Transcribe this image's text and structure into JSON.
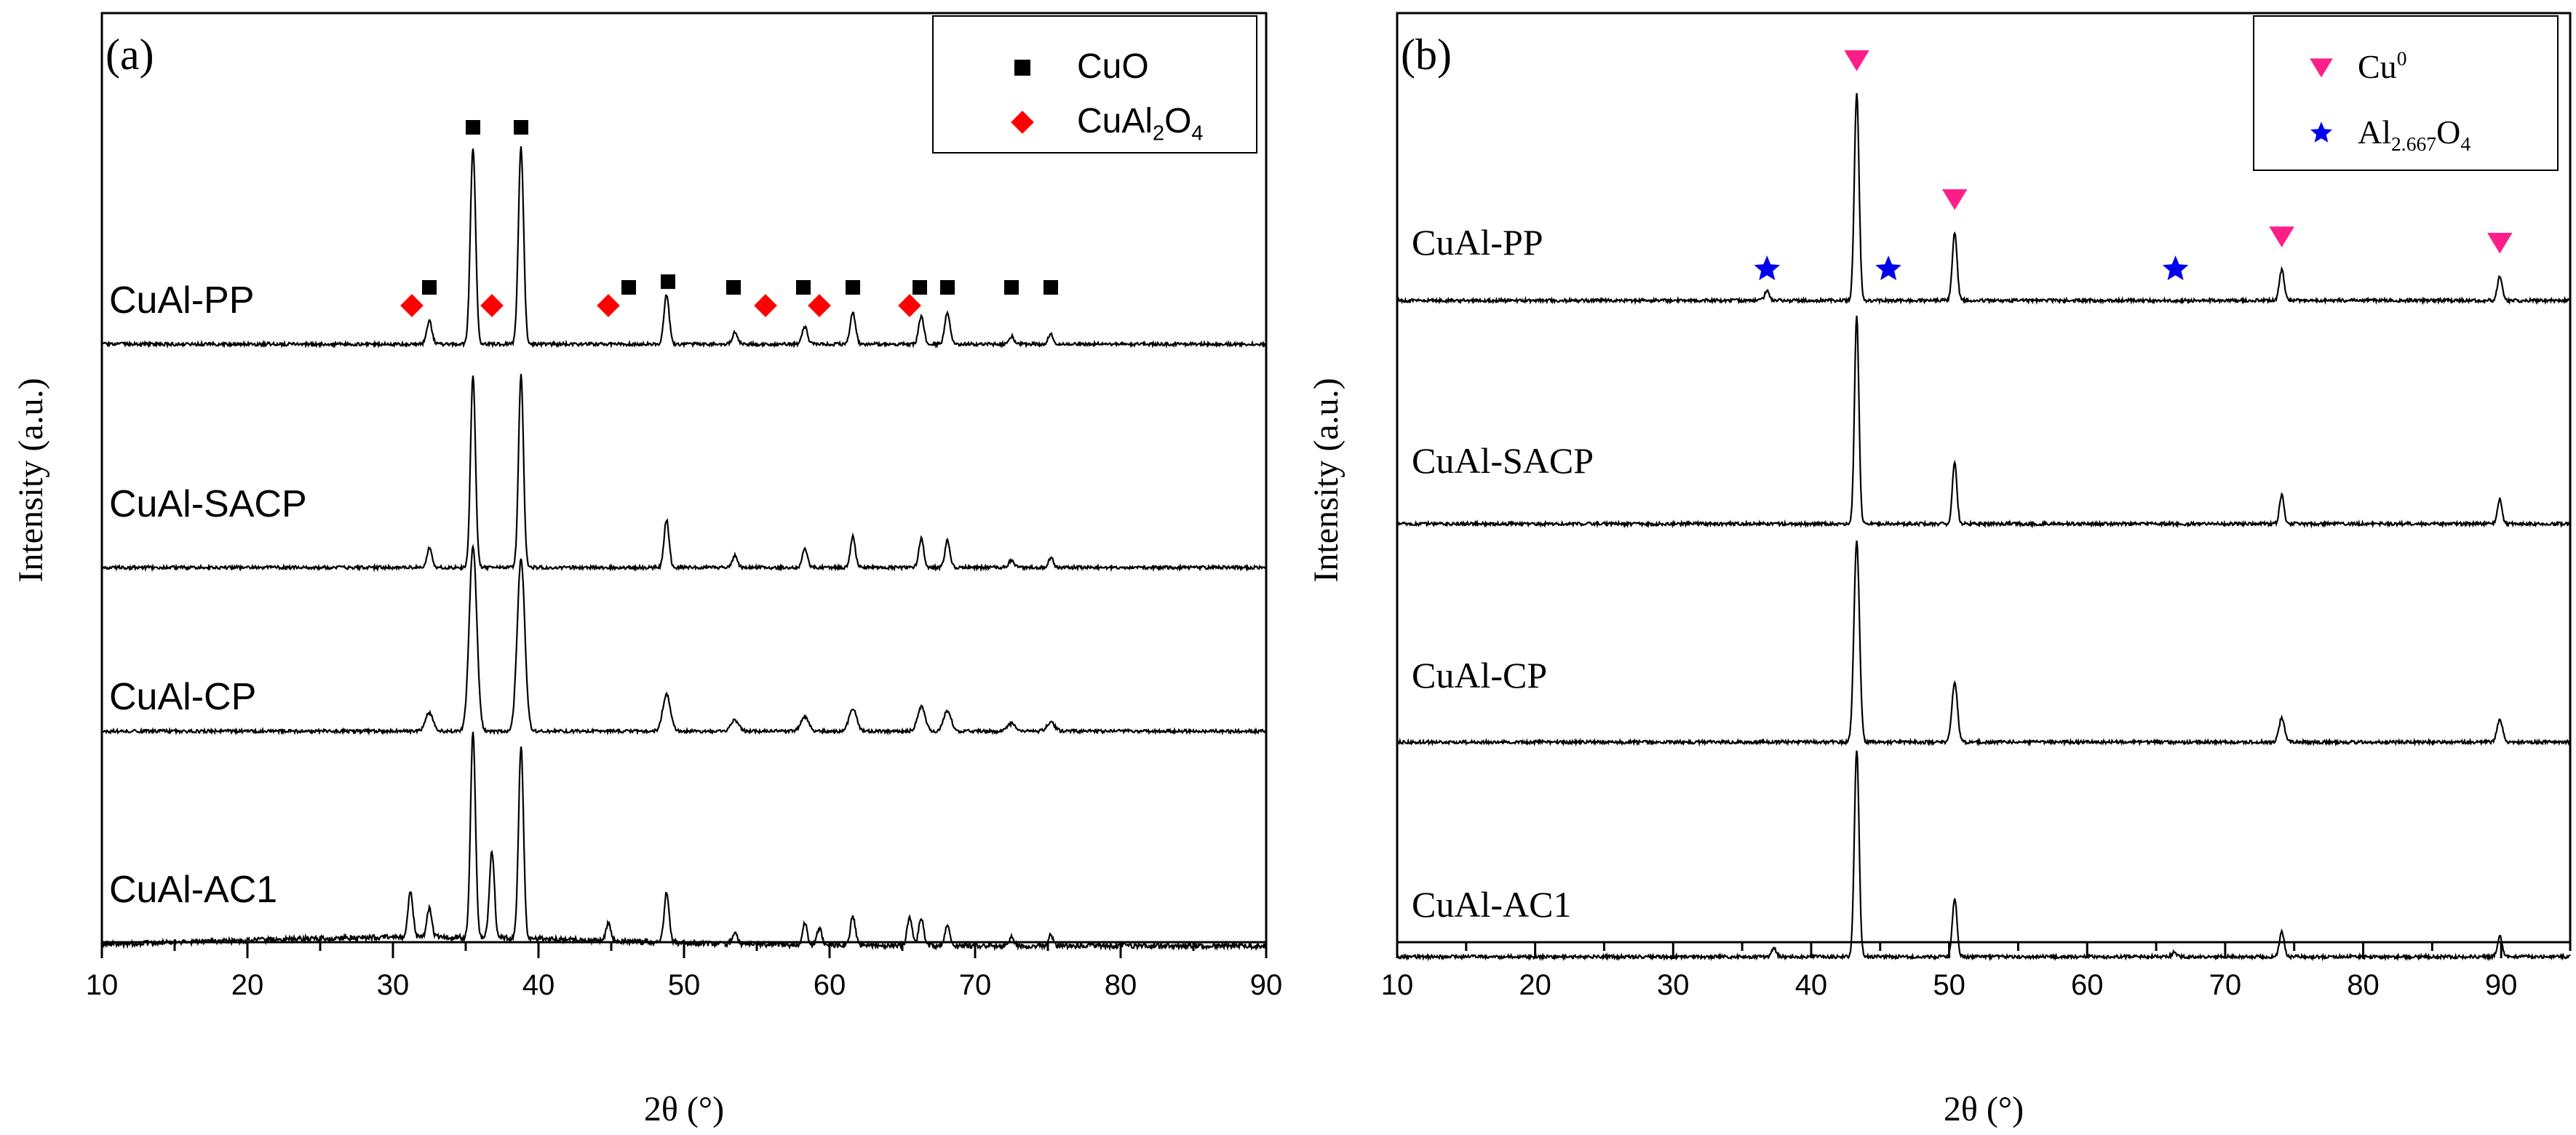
{
  "chart_data": [
    {
      "panel": "(a)",
      "type": "line",
      "xlabel": "2θ (°)",
      "ylabel": "Intensity (a.u.)",
      "xlim": [
        10,
        90
      ],
      "xticks": [
        "10",
        "20",
        "30",
        "40",
        "50",
        "60",
        "70",
        "80",
        "90"
      ],
      "legend": {
        "position": "top-right",
        "entries": [
          {
            "label": "CuO",
            "marker": "square",
            "color": "#000000"
          },
          {
            "label": "CuAl",
            "sub": "2",
            "label2": "O",
            "sub2": "4",
            "marker": "diamond",
            "color": "#ff0000"
          }
        ]
      },
      "series": [
        {
          "name": "CuAl-PP",
          "peaks": [
            [
              32.5,
              0.12
            ],
            [
              35.5,
              1.0
            ],
            [
              38.8,
              1.0
            ],
            [
              48.8,
              0.25
            ],
            [
              53.5,
              0.06
            ],
            [
              58.3,
              0.09
            ],
            [
              61.6,
              0.16
            ],
            [
              66.3,
              0.14
            ],
            [
              68.1,
              0.16
            ],
            [
              72.5,
              0.04
            ],
            [
              75.2,
              0.05
            ]
          ]
        },
        {
          "name": "CuAl-SACP",
          "peaks": [
            [
              32.5,
              0.1
            ],
            [
              35.5,
              1.0
            ],
            [
              38.8,
              1.0
            ],
            [
              48.8,
              0.25
            ],
            [
              53.5,
              0.06
            ],
            [
              58.3,
              0.1
            ],
            [
              61.6,
              0.16
            ],
            [
              66.3,
              0.15
            ],
            [
              68.1,
              0.14
            ],
            [
              72.5,
              0.04
            ],
            [
              75.2,
              0.05
            ]
          ]
        },
        {
          "name": "CuAl-CP",
          "peaks": [
            [
              32.5,
              0.1
            ],
            [
              35.5,
              1.0
            ],
            [
              38.8,
              0.93
            ],
            [
              48.8,
              0.2
            ],
            [
              53.5,
              0.06
            ],
            [
              58.3,
              0.08
            ],
            [
              61.6,
              0.12
            ],
            [
              66.3,
              0.13
            ],
            [
              68.1,
              0.11
            ],
            [
              72.5,
              0.04
            ],
            [
              75.2,
              0.05
            ]
          ]
        },
        {
          "name": "CuAl-AC1",
          "peaks": [
            [
              31.2,
              0.22
            ],
            [
              32.5,
              0.14
            ],
            [
              35.5,
              1.0
            ],
            [
              36.8,
              0.42
            ],
            [
              38.8,
              0.93
            ],
            [
              44.8,
              0.08
            ],
            [
              48.8,
              0.24
            ],
            [
              53.5,
              0.06
            ],
            [
              58.3,
              0.1
            ],
            [
              59.3,
              0.08
            ],
            [
              61.6,
              0.14
            ],
            [
              65.5,
              0.14
            ],
            [
              66.3,
              0.14
            ],
            [
              68.1,
              0.1
            ],
            [
              72.5,
              0.04
            ],
            [
              75.2,
              0.05
            ]
          ]
        }
      ],
      "markers": {
        "CuO": [
          32.5,
          35.5,
          38.8,
          46.2,
          48.9,
          53.4,
          58.2,
          61.6,
          66.2,
          68.1,
          72.5,
          75.2
        ],
        "CuAl2O4": [
          31.3,
          36.8,
          44.8,
          55.6,
          59.3,
          65.5
        ]
      }
    },
    {
      "panel": "(b)",
      "type": "line",
      "xlabel": "2θ (°)",
      "ylabel": "Intensity (a.u.)",
      "xlim": [
        10,
        95
      ],
      "xticks": [
        "10",
        "20",
        "30",
        "40",
        "50",
        "60",
        "70",
        "80",
        "90"
      ],
      "legend": {
        "position": "top-right",
        "entries": [
          {
            "label": "Cu",
            "sup": "0",
            "marker": "triangle-down",
            "color": "#ff1e88"
          },
          {
            "label": "Al",
            "sub": "2.667",
            "label2": "O",
            "sub2": "4",
            "marker": "star",
            "color": "#0000ee"
          }
        ]
      },
      "series": [
        {
          "name": "CuAl-PP",
          "peaks": [
            [
              36.8,
              0.05
            ],
            [
              43.3,
              1.0
            ],
            [
              50.4,
              0.33
            ],
            [
              74.1,
              0.15
            ],
            [
              89.9,
              0.12
            ]
          ]
        },
        {
          "name": "CuAl-SACP",
          "peaks": [
            [
              43.3,
              1.0
            ],
            [
              50.4,
              0.3
            ],
            [
              74.1,
              0.14
            ],
            [
              89.9,
              0.12
            ]
          ]
        },
        {
          "name": "CuAl-CP",
          "peaks": [
            [
              43.3,
              1.0
            ],
            [
              50.4,
              0.3
            ],
            [
              74.1,
              0.12
            ],
            [
              89.9,
              0.11
            ]
          ]
        },
        {
          "name": "CuAl-AC1",
          "peaks": [
            [
              37.3,
              0.04
            ],
            [
              43.3,
              1.0
            ],
            [
              50.4,
              0.28
            ],
            [
              66.3,
              0.02
            ],
            [
              74.1,
              0.12
            ],
            [
              89.9,
              0.1
            ]
          ]
        }
      ],
      "markers": {
        "Cu0": [
          43.3,
          50.4,
          74.1,
          89.9
        ],
        "Al2.667O4": [
          36.8,
          45.6,
          66.4
        ]
      }
    }
  ]
}
